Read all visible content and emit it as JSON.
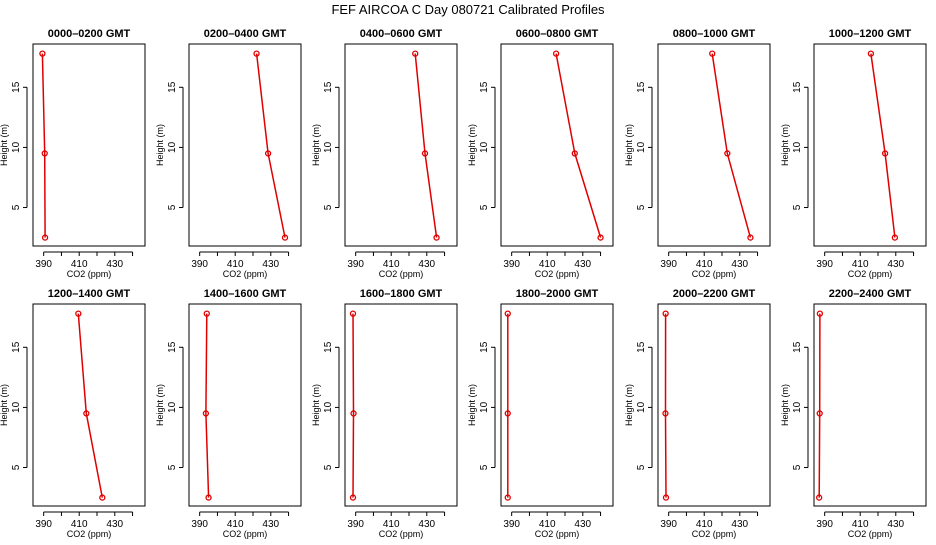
{
  "figure_title": "FEF AIRCOA C  Day 080721  Calibrated Profiles",
  "colors": {
    "line": "#e00000",
    "axis": "#000000"
  },
  "chart_data": [
    {
      "type": "line",
      "title": "0000–0200 GMT",
      "xlabel": "CO2 (ppm)",
      "ylabel": "Height (m)",
      "xlim": [
        384,
        447
      ],
      "ylim": [
        1.8,
        18.6
      ],
      "xticks": [
        390,
        410,
        430
      ],
      "yticks": [
        5,
        10,
        15
      ],
      "x": [
        389.3,
        390.6,
        390.8
      ],
      "y": [
        17.8,
        9.5,
        2.5
      ]
    },
    {
      "type": "line",
      "title": "0200–0400 GMT",
      "xlabel": "CO2 (ppm)",
      "ylabel": "Height (m)",
      "xlim": [
        384,
        447
      ],
      "ylim": [
        1.8,
        18.6
      ],
      "xticks": [
        390,
        410,
        430
      ],
      "yticks": [
        5,
        10,
        15
      ],
      "x": [
        422,
        428.5,
        438
      ],
      "y": [
        17.8,
        9.5,
        2.5
      ]
    },
    {
      "type": "line",
      "title": "0400–0600 GMT",
      "xlabel": "CO2 (ppm)",
      "ylabel": "Height (m)",
      "xlim": [
        384,
        447
      ],
      "ylim": [
        1.8,
        18.6
      ],
      "xticks": [
        390,
        410,
        430
      ],
      "yticks": [
        5,
        10,
        15
      ],
      "x": [
        423.5,
        429,
        435.5
      ],
      "y": [
        17.8,
        9.5,
        2.5
      ]
    },
    {
      "type": "line",
      "title": "0600–0800 GMT",
      "xlabel": "CO2 (ppm)",
      "ylabel": "Height (m)",
      "xlim": [
        384,
        447
      ],
      "ylim": [
        1.8,
        18.6
      ],
      "xticks": [
        390,
        410,
        430
      ],
      "yticks": [
        5,
        10,
        15
      ],
      "x": [
        415,
        425.5,
        440
      ],
      "y": [
        17.8,
        9.5,
        2.5
      ]
    },
    {
      "type": "line",
      "title": "0800–1000 GMT",
      "xlabel": "CO2 (ppm)",
      "ylabel": "Height (m)",
      "xlim": [
        384,
        447
      ],
      "ylim": [
        1.8,
        18.6
      ],
      "xticks": [
        390,
        410,
        430
      ],
      "yticks": [
        5,
        10,
        15
      ],
      "x": [
        414.5,
        423,
        436
      ],
      "y": [
        17.8,
        9.5,
        2.5
      ]
    },
    {
      "type": "line",
      "title": "1000–1200 GMT",
      "xlabel": "CO2 (ppm)",
      "ylabel": "Height (m)",
      "xlim": [
        384,
        447
      ],
      "ylim": [
        1.8,
        18.6
      ],
      "xticks": [
        390,
        410,
        430
      ],
      "yticks": [
        5,
        10,
        15
      ],
      "x": [
        416,
        424,
        429.5
      ],
      "y": [
        17.8,
        9.5,
        2.5
      ]
    },
    {
      "type": "line",
      "title": "1200–1400 GMT",
      "xlabel": "CO2 (ppm)",
      "ylabel": "Height (m)",
      "xlim": [
        384,
        447
      ],
      "ylim": [
        1.8,
        18.6
      ],
      "xticks": [
        390,
        410,
        430
      ],
      "yticks": [
        5,
        10,
        15
      ],
      "x": [
        409.5,
        414,
        423
      ],
      "y": [
        17.8,
        9.5,
        2.5
      ]
    },
    {
      "type": "line",
      "title": "1400–1600 GMT",
      "xlabel": "CO2 (ppm)",
      "ylabel": "Height (m)",
      "xlim": [
        384,
        447
      ],
      "ylim": [
        1.8,
        18.6
      ],
      "xticks": [
        390,
        410,
        430
      ],
      "yticks": [
        5,
        10,
        15
      ],
      "x": [
        394,
        393.5,
        395
      ],
      "y": [
        17.8,
        9.5,
        2.5
      ]
    },
    {
      "type": "line",
      "title": "1600–1800 GMT",
      "xlabel": "CO2 (ppm)",
      "ylabel": "Height (m)",
      "xlim": [
        384,
        447
      ],
      "ylim": [
        1.8,
        18.6
      ],
      "xticks": [
        390,
        410,
        430
      ],
      "yticks": [
        5,
        10,
        15
      ],
      "x": [
        388.5,
        388.8,
        388.5
      ],
      "y": [
        17.8,
        9.5,
        2.5
      ]
    },
    {
      "type": "line",
      "title": "1800–2000 GMT",
      "xlabel": "CO2 (ppm)",
      "ylabel": "Height (m)",
      "xlim": [
        384,
        447
      ],
      "ylim": [
        1.8,
        18.6
      ],
      "xticks": [
        390,
        410,
        430
      ],
      "yticks": [
        5,
        10,
        15
      ],
      "x": [
        387.8,
        387.8,
        387.8
      ],
      "y": [
        17.8,
        9.5,
        2.5
      ]
    },
    {
      "type": "line",
      "title": "2000–2200 GMT",
      "xlabel": "CO2 (ppm)",
      "ylabel": "Height (m)",
      "xlim": [
        384,
        447
      ],
      "ylim": [
        1.8,
        18.6
      ],
      "xticks": [
        390,
        410,
        430
      ],
      "yticks": [
        5,
        10,
        15
      ],
      "x": [
        388.3,
        388.2,
        388.5
      ],
      "y": [
        17.8,
        9.5,
        2.5
      ]
    },
    {
      "type": "line",
      "title": "2200–2400 GMT",
      "xlabel": "CO2 (ppm)",
      "ylabel": "Height (m)",
      "xlim": [
        384,
        447
      ],
      "ylim": [
        1.8,
        18.6
      ],
      "xticks": [
        390,
        410,
        430
      ],
      "yticks": [
        5,
        10,
        15
      ],
      "x": [
        387.3,
        387.2,
        386.9
      ],
      "y": [
        17.8,
        9.5,
        2.5
      ]
    }
  ]
}
